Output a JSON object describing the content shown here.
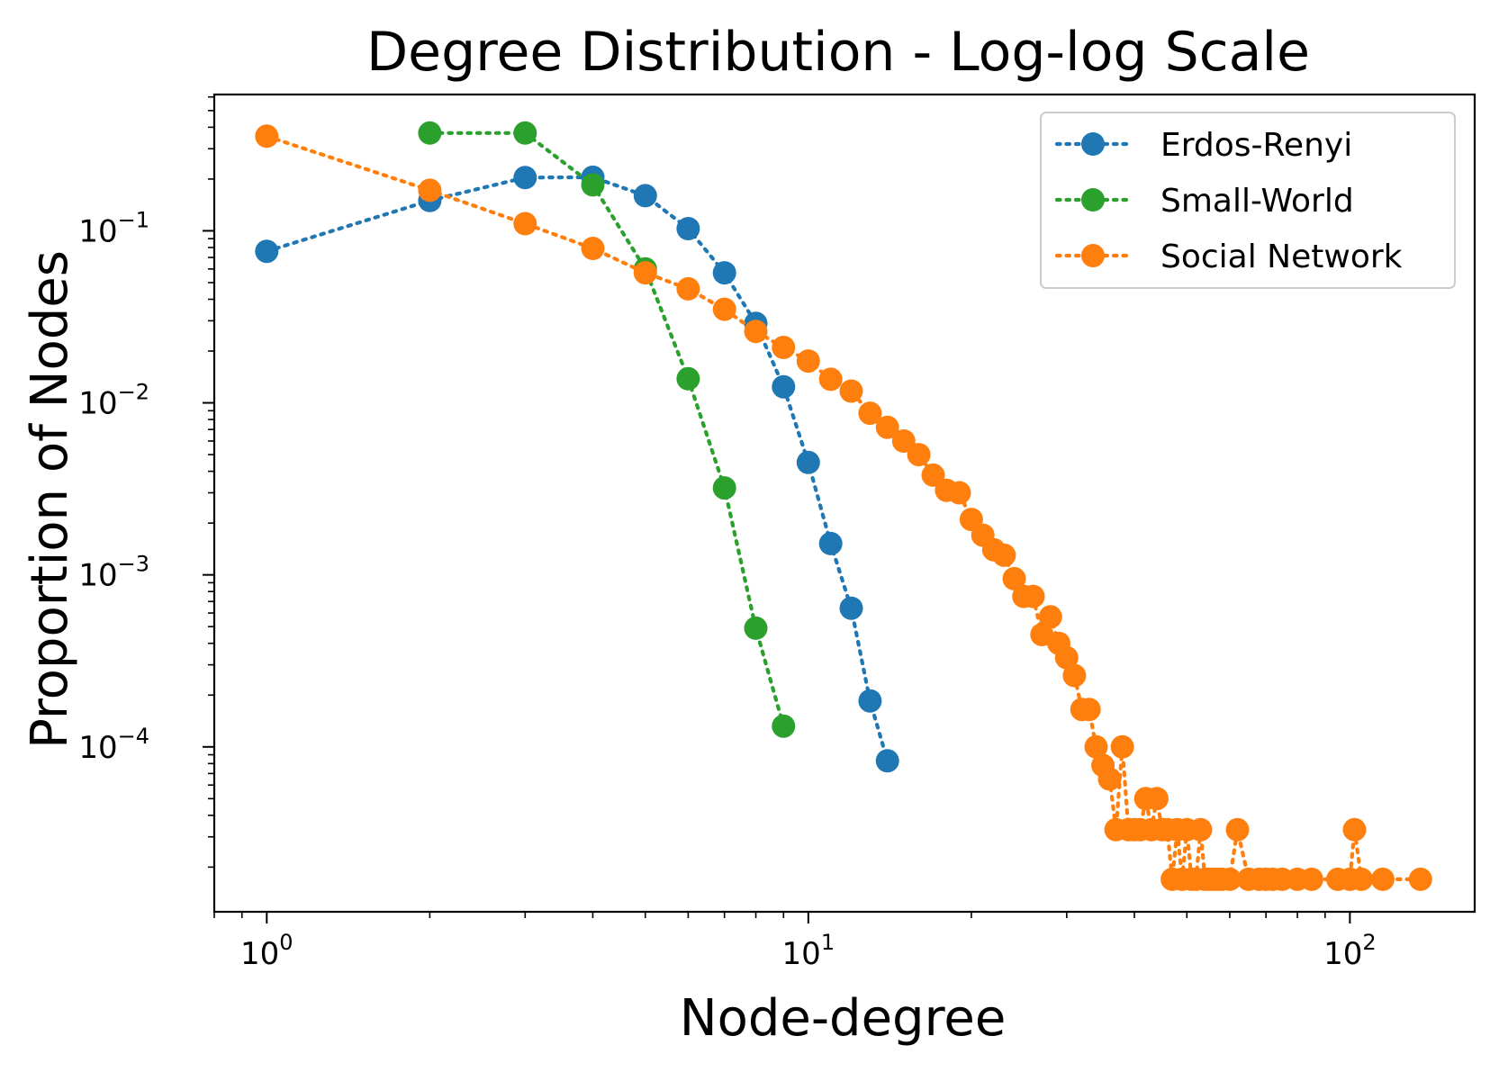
{
  "chart_data": {
    "type": "line",
    "title": "Degree Distribution - Log-log Scale",
    "xlabel": "Node-degree",
    "ylabel": "Proportion of Nodes",
    "x_scale": "log",
    "y_scale": "log",
    "xlim": [
      0.8,
      170
    ],
    "ylim": [
      1.1e-05,
      0.62
    ],
    "line_style": "dotted",
    "marker": "circle",
    "grid": false,
    "legend_position": "top-right",
    "x_ticks": [
      {
        "value": 1,
        "base": "10",
        "exp": "0"
      },
      {
        "value": 10,
        "base": "10",
        "exp": "1"
      },
      {
        "value": 100,
        "base": "10",
        "exp": "2"
      }
    ],
    "y_ticks": [
      {
        "value": 0.1,
        "base": "10",
        "exp": "−1"
      },
      {
        "value": 0.01,
        "base": "10",
        "exp": "−2"
      },
      {
        "value": 0.001,
        "base": "10",
        "exp": "−3"
      },
      {
        "value": 0.0001,
        "base": "10",
        "exp": "−4"
      }
    ],
    "series": [
      {
        "name": "Erdos-Renyi",
        "color": "#1f77b4",
        "x": [
          1,
          2,
          3,
          4,
          5,
          6,
          7,
          8,
          9,
          10,
          11,
          12,
          13,
          14
        ],
        "y": [
          0.076,
          0.15,
          0.204,
          0.205,
          0.16,
          0.103,
          0.057,
          0.029,
          0.0124,
          0.0045,
          0.00152,
          0.00064,
          0.000185,
          8.3e-05
        ]
      },
      {
        "name": "Small-World",
        "color": "#2ca02c",
        "x": [
          2,
          3,
          4,
          5,
          6,
          7,
          8,
          9
        ],
        "y": [
          0.37,
          0.37,
          0.185,
          0.06,
          0.0138,
          0.0032,
          0.00049,
          0.000132
        ]
      },
      {
        "name": "Social Network",
        "color": "#ff7f0e",
        "x": [
          1,
          2,
          3,
          4,
          5,
          6,
          7,
          8,
          9,
          10,
          11,
          12,
          13,
          14,
          15,
          16,
          17,
          18,
          19,
          20,
          21,
          22,
          23,
          24,
          25,
          26,
          27,
          28,
          29,
          30,
          31,
          32,
          33,
          34,
          35,
          36,
          37,
          38,
          39,
          40,
          41,
          42,
          43,
          44,
          45,
          46,
          47,
          48,
          49,
          50,
          51,
          52,
          53,
          54,
          55,
          56,
          57,
          58,
          60,
          62,
          65,
          68,
          70,
          72,
          75,
          80,
          85,
          95,
          100,
          102,
          105,
          115,
          135
        ],
        "y": [
          0.355,
          0.172,
          0.11,
          0.079,
          0.057,
          0.046,
          0.035,
          0.026,
          0.021,
          0.0175,
          0.0137,
          0.0117,
          0.0087,
          0.0072,
          0.006,
          0.005,
          0.0038,
          0.0031,
          0.003,
          0.0021,
          0.0017,
          0.0014,
          0.0013,
          0.00095,
          0.00075,
          0.00075,
          0.00045,
          0.00057,
          0.0004,
          0.00033,
          0.00026,
          0.000165,
          0.000165,
          0.0001,
          7.8e-05,
          6.5e-05,
          3.3e-05,
          0.0001,
          3.3e-05,
          3.3e-05,
          3.3e-05,
          5e-05,
          3.3e-05,
          5e-05,
          3.3e-05,
          3.3e-05,
          1.7e-05,
          3.3e-05,
          1.7e-05,
          3.3e-05,
          1.7e-05,
          1.7e-05,
          3.3e-05,
          1.7e-05,
          1.7e-05,
          1.7e-05,
          1.7e-05,
          1.7e-05,
          1.7e-05,
          3.3e-05,
          1.7e-05,
          1.7e-05,
          1.7e-05,
          1.7e-05,
          1.7e-05,
          1.7e-05,
          1.7e-05,
          1.7e-05,
          1.7e-05,
          3.3e-05,
          1.7e-05,
          1.7e-05,
          1.7e-05
        ]
      }
    ]
  }
}
